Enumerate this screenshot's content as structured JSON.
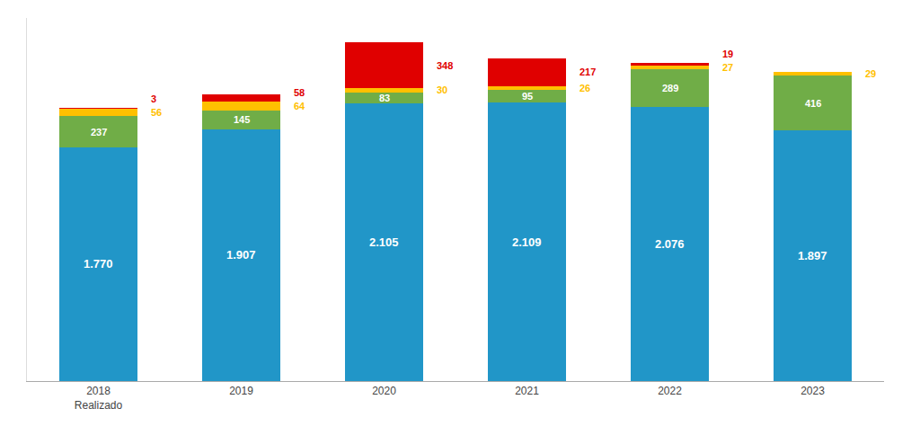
{
  "chart_data": {
    "type": "bar",
    "stacked": true,
    "data_labels": true,
    "tick_labels": "x",
    "grid": false,
    "categories": [
      "2018\nRealizado",
      "2019",
      "2020",
      "2021",
      "2022",
      "2023"
    ],
    "series": [
      {
        "color": "#2196C8",
        "values": [
          1770,
          1907,
          2105,
          2109,
          2076,
          1897
        ],
        "value_labels": [
          "1.770",
          "1.907",
          "2.105",
          "2.109",
          "2.076",
          "1.897"
        ]
      },
      {
        "color": "#70AD47",
        "values": [
          237,
          145,
          83,
          95,
          289,
          416
        ]
      },
      {
        "color": "#FFC000",
        "values": [
          56,
          64,
          30,
          26,
          27,
          29
        ]
      },
      {
        "color": "#E00000",
        "values": [
          3,
          58,
          348,
          217,
          19,
          0
        ],
        "value_labels": [
          "3",
          "58",
          "348",
          "217",
          "19",
          null
        ]
      }
    ],
    "ylim": [
      0,
      2750
    ]
  }
}
